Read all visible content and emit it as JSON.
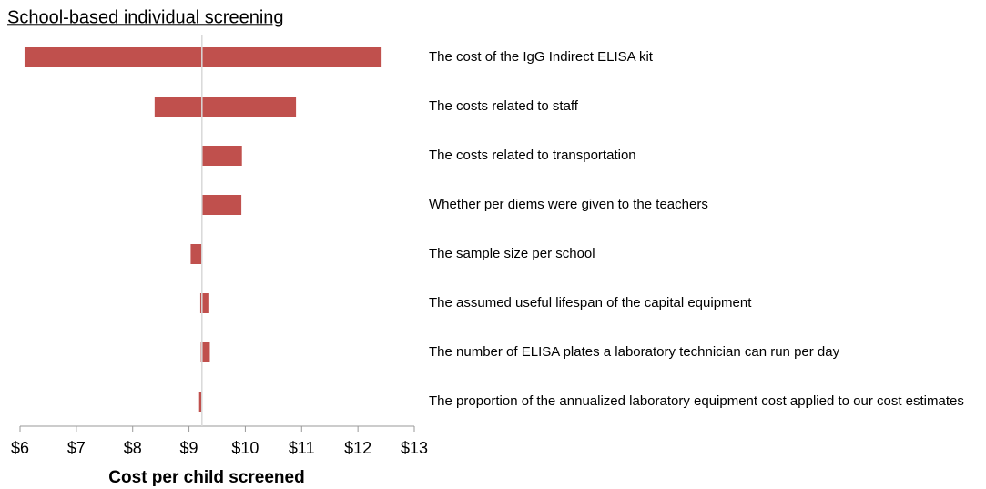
{
  "chart_data": {
    "type": "tornado",
    "title": "School-based individual screening",
    "x_label": "Cost per child screened",
    "categories": [
      "The cost of the IgG Indirect ELISA kit",
      "The costs related to staff",
      "The costs related to transportation",
      "Whether per diems were given to the teachers",
      "The sample size per school",
      "The assumed useful lifespan of the capital equipment",
      "The number of ELISA plates a laboratory technician can run per day",
      "The proportion of the annualized laboratory equipment cost applied to our cost estimates"
    ],
    "low": [
      6.08,
      8.39,
      9.23,
      9.23,
      9.03,
      9.2,
      9.21,
      9.18
    ],
    "high": [
      12.42,
      10.9,
      9.94,
      9.93,
      9.23,
      9.36,
      9.37,
      9.23
    ],
    "base": 9.23,
    "color": "#c0504d",
    "xlim": [
      6,
      13
    ],
    "xticks": [
      {
        "value": 6,
        "label": "$6"
      },
      {
        "value": 7,
        "label": "$7"
      },
      {
        "value": 8,
        "label": "$8"
      },
      {
        "value": 9,
        "label": "$9"
      },
      {
        "value": 10,
        "label": "$10"
      },
      {
        "value": 11,
        "label": "$11"
      },
      {
        "value": 12,
        "label": "$12"
      },
      {
        "value": 13,
        "label": "$13"
      }
    ]
  }
}
